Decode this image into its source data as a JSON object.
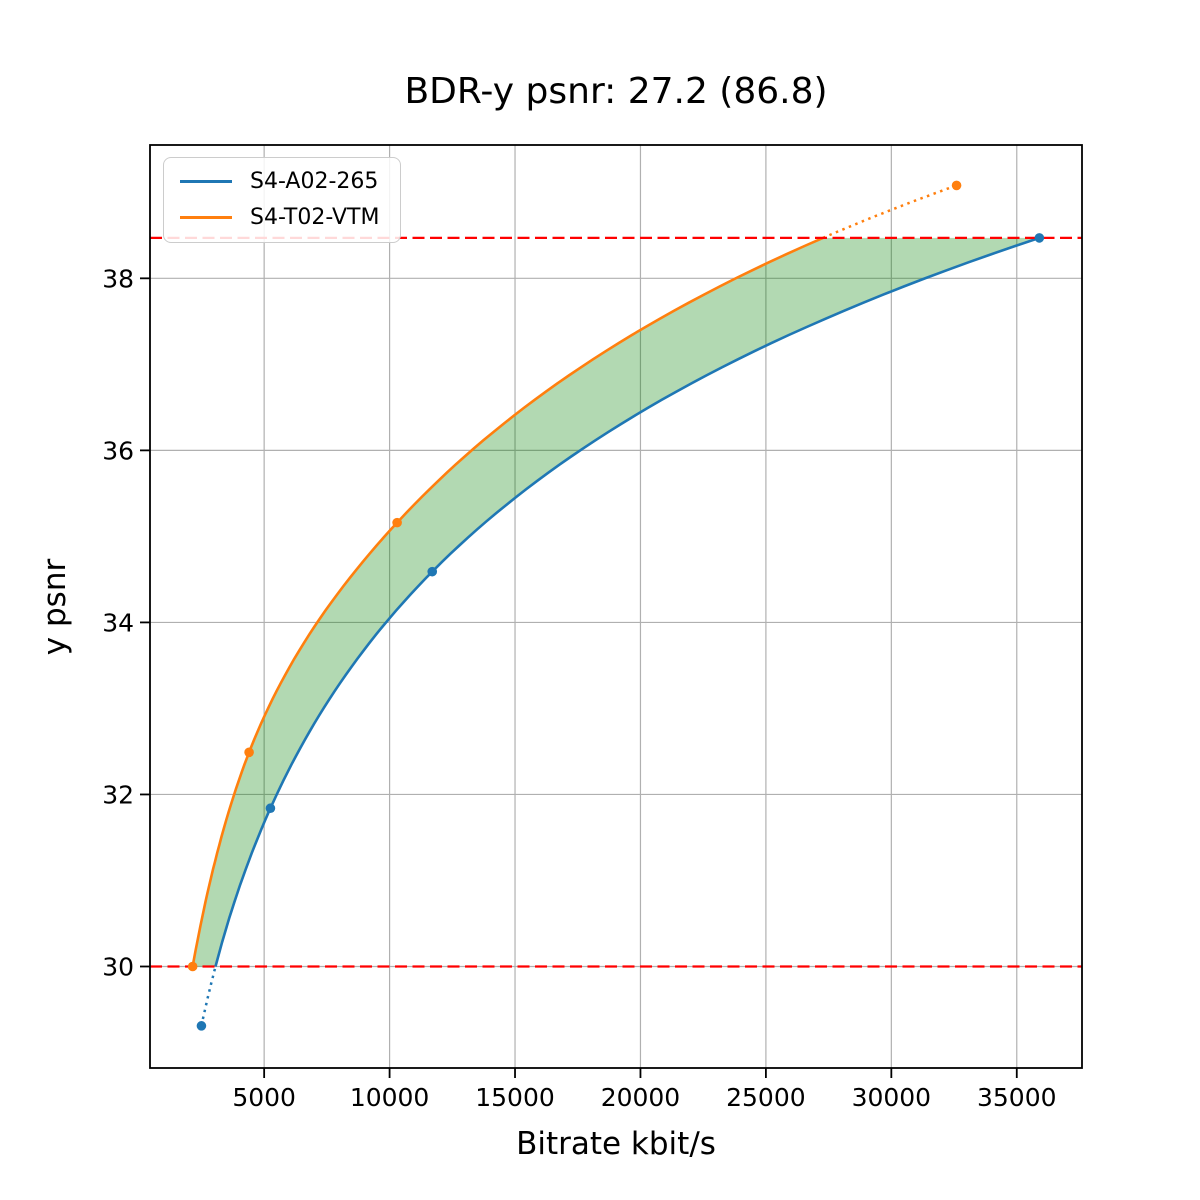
{
  "chart_data": {
    "type": "line",
    "title": "BDR-y psnr: 27.2 (86.8)",
    "xlabel": "Bitrate kbit/s",
    "ylabel": "y psnr",
    "xlim": [
      450,
      37600
    ],
    "ylim": [
      28.82,
      39.55
    ],
    "x_ticks": [
      5000,
      10000,
      15000,
      20000,
      25000,
      30000,
      35000
    ],
    "y_ticks": [
      30,
      32,
      34,
      36,
      38
    ],
    "grid": true,
    "grid_color": "#b0b0b0",
    "legend_position": "upper left",
    "series": [
      {
        "name": "S4-A02-265",
        "color": "#1f77b4",
        "bitrate_kbits": [
          2500,
          5250,
          11700,
          35900
        ],
        "psnr": [
          29.31,
          31.84,
          34.59,
          38.47
        ]
      },
      {
        "name": "S4-T02-VTM",
        "color": "#ff7f0e",
        "bitrate_kbits": [
          2150,
          4400,
          10300,
          32600
        ],
        "psnr": [
          30.0,
          32.49,
          35.16,
          39.08
        ]
      }
    ],
    "overlap_hlines": {
      "values": [
        30.0,
        38.47
      ],
      "color": "#ff0000",
      "style": "dashed"
    },
    "fill_between": {
      "color": "#008000",
      "opacity": 0.3
    }
  }
}
